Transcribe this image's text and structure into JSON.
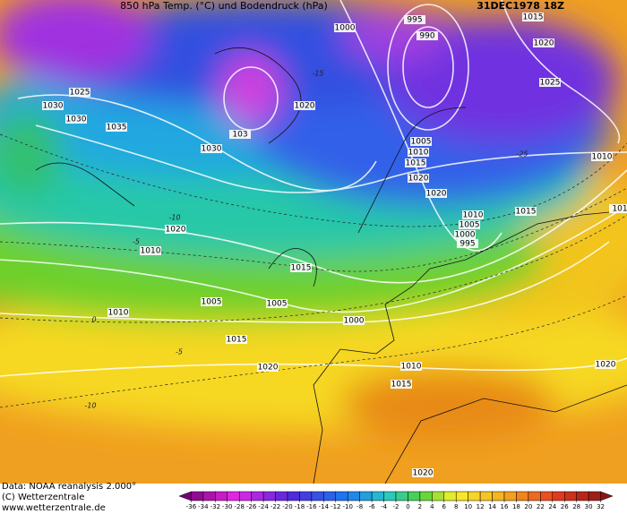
{
  "header": {
    "title": "850 hPa Temp. (°C) und Bodendruck (hPa)",
    "date": "31DEC1978 18Z"
  },
  "isobar_labels": [
    "995",
    "1000",
    "990",
    "1015",
    "1020",
    "1025",
    "1025",
    "1030",
    "1030",
    "1035",
    "1020",
    "103",
    "1030",
    "1005",
    "1010",
    "1015",
    "1020",
    "1020",
    "1010",
    "1010",
    "1005",
    "1000",
    "995",
    "1015",
    "1020",
    "1010",
    "1015",
    "1005",
    "1005",
    "1010",
    "1000",
    "1015",
    "1020",
    "1010",
    "1015",
    "1020",
    "1020",
    "101"
  ],
  "temperature_labels": [
    "-15",
    "-10",
    "-5",
    "0",
    "-5",
    "-10",
    "-25"
  ],
  "footer": {
    "source": "Data: NOAA reanalysis 2.000°",
    "copyright": "(C) Wetterzentrale",
    "url": "www.wetterzentrale.de"
  },
  "colorbar": {
    "ticks": [
      -36,
      -34,
      -32,
      -30,
      -28,
      -26,
      -24,
      -22,
      -20,
      -18,
      -16,
      -14,
      -12,
      -10,
      -8,
      -6,
      -4,
      -2,
      0,
      2,
      4,
      6,
      8,
      10,
      12,
      14,
      16,
      18,
      20,
      22,
      24,
      26,
      28,
      30,
      32
    ]
  }
}
